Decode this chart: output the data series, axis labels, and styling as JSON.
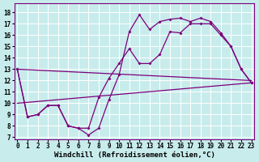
{
  "xlabel": "Windchill (Refroidissement éolien,°C)",
  "bg_color": "#c8ecec",
  "grid_color": "#ffffff",
  "line_color": "#7b007b",
  "x_ticks": [
    0,
    1,
    2,
    3,
    4,
    5,
    6,
    7,
    8,
    9,
    10,
    11,
    12,
    13,
    14,
    15,
    16,
    17,
    18,
    19,
    20,
    21,
    22,
    23
  ],
  "y_ticks": [
    7,
    8,
    9,
    10,
    11,
    12,
    13,
    14,
    15,
    16,
    17,
    18
  ],
  "ylim": [
    6.8,
    18.8
  ],
  "xlim": [
    -0.3,
    23.3
  ],
  "line1_x": [
    0,
    1,
    2,
    3,
    4,
    5,
    6,
    7,
    8,
    9,
    10,
    11,
    12,
    13,
    14,
    15,
    16,
    17,
    18,
    19,
    20,
    21,
    22,
    23
  ],
  "line1_y": [
    13.0,
    8.8,
    9.0,
    9.8,
    9.8,
    8.0,
    7.8,
    7.2,
    7.8,
    10.3,
    12.5,
    16.3,
    17.8,
    16.5,
    17.2,
    17.4,
    17.5,
    17.2,
    17.5,
    17.2,
    16.2,
    15.0,
    13.0,
    11.8
  ],
  "line2_x": [
    0,
    1,
    2,
    3,
    4,
    5,
    6,
    7,
    8,
    9,
    10,
    11,
    12,
    13,
    14,
    15,
    16,
    17,
    18,
    19,
    20,
    21,
    22,
    23
  ],
  "line2_y": [
    13.0,
    8.8,
    9.0,
    9.8,
    9.8,
    8.0,
    7.8,
    7.8,
    10.5,
    12.2,
    13.5,
    14.8,
    13.5,
    13.5,
    14.3,
    16.3,
    16.2,
    17.0,
    17.0,
    17.0,
    16.0,
    15.0,
    13.0,
    11.8
  ],
  "line3_x": [
    0,
    23
  ],
  "line3_y": [
    13.0,
    12.0
  ],
  "line4_x": [
    0,
    23
  ],
  "line4_y": [
    10.0,
    11.8
  ],
  "ticker_fontsize": 5.5,
  "xlabel_fontsize": 6.5,
  "title_fontsize": 6.0,
  "lw": 0.9,
  "ms": 2.0
}
